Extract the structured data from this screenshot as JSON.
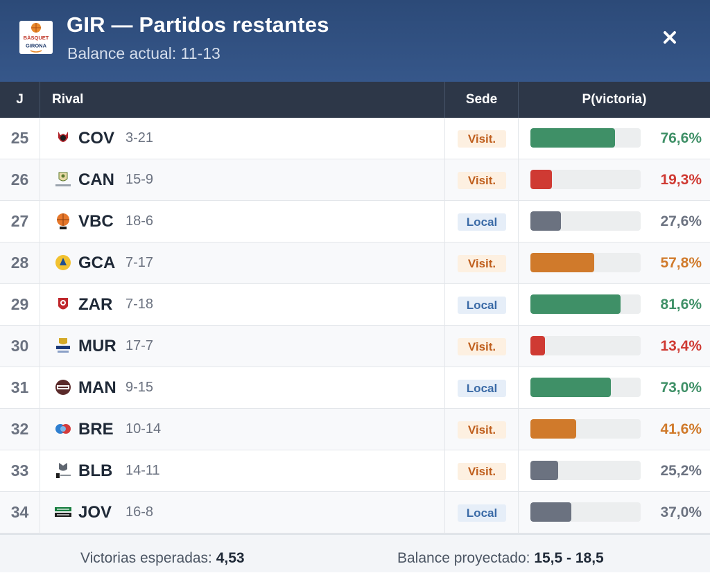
{
  "header": {
    "title": "GIR — Partidos restantes",
    "subtitle": "Balance actual: 11-13",
    "logo": {
      "name": "basquet-girona-logo",
      "text_line1": "BÀSQUET",
      "text_line2": "GIRONA"
    },
    "close_icon": "close-icon"
  },
  "table": {
    "columns": {
      "j": "J",
      "rival": "Rival",
      "sede": "Sede",
      "prob": "P(victoria)"
    },
    "rows": [
      {
        "j": "25",
        "code": "COV",
        "record": "3-21",
        "sede": "Visit.",
        "sede_type": "away",
        "pct_label": "76,6%",
        "pct": 76.6,
        "color": "#3f9067",
        "logo_icon": "coviran-granada-logo-icon"
      },
      {
        "j": "26",
        "code": "CAN",
        "record": "15-9",
        "sede": "Visit.",
        "sede_type": "away",
        "pct_label": "19,3%",
        "pct": 19.3,
        "color": "#cf3a33",
        "logo_icon": "la-laguna-tenerife-logo-icon"
      },
      {
        "j": "27",
        "code": "VBC",
        "record": "18-6",
        "sede": "Local",
        "sede_type": "home",
        "pct_label": "27,6%",
        "pct": 27.6,
        "color": "#6b7280",
        "logo_icon": "valencia-basket-logo-icon"
      },
      {
        "j": "28",
        "code": "GCA",
        "record": "7-17",
        "sede": "Visit.",
        "sede_type": "away",
        "pct_label": "57,8%",
        "pct": 57.8,
        "color": "#d07a2b",
        "logo_icon": "gran-canaria-logo-icon"
      },
      {
        "j": "29",
        "code": "ZAR",
        "record": "7-18",
        "sede": "Local",
        "sede_type": "home",
        "pct_label": "81,6%",
        "pct": 81.6,
        "color": "#3f9067",
        "logo_icon": "zaragoza-logo-icon"
      },
      {
        "j": "30",
        "code": "MUR",
        "record": "17-7",
        "sede": "Visit.",
        "sede_type": "away",
        "pct_label": "13,4%",
        "pct": 13.4,
        "color": "#cf3a33",
        "logo_icon": "ucam-murcia-logo-icon"
      },
      {
        "j": "31",
        "code": "MAN",
        "record": "9-15",
        "sede": "Local",
        "sede_type": "home",
        "pct_label": "73,0%",
        "pct": 73.0,
        "color": "#3f9067",
        "logo_icon": "baxi-manresa-logo-icon"
      },
      {
        "j": "32",
        "code": "BRE",
        "record": "10-14",
        "sede": "Visit.",
        "sede_type": "away",
        "pct_label": "41,6%",
        "pct": 41.6,
        "color": "#d07a2b",
        "logo_icon": "breogan-logo-icon"
      },
      {
        "j": "33",
        "code": "BLB",
        "record": "14-11",
        "sede": "Visit.",
        "sede_type": "away",
        "pct_label": "25,2%",
        "pct": 25.2,
        "color": "#6b7280",
        "logo_icon": "bilbao-basket-logo-icon"
      },
      {
        "j": "34",
        "code": "JOV",
        "record": "16-8",
        "sede": "Local",
        "sede_type": "home",
        "pct_label": "37,0%",
        "pct": 37.0,
        "color": "#6b7280",
        "logo_icon": "joventut-logo-icon"
      }
    ]
  },
  "footer": {
    "expected_label": "Victorias esperadas:",
    "expected_value": "4,53",
    "projected_label": "Balance proyectado:",
    "projected_value": "15,5 - 18,5"
  }
}
